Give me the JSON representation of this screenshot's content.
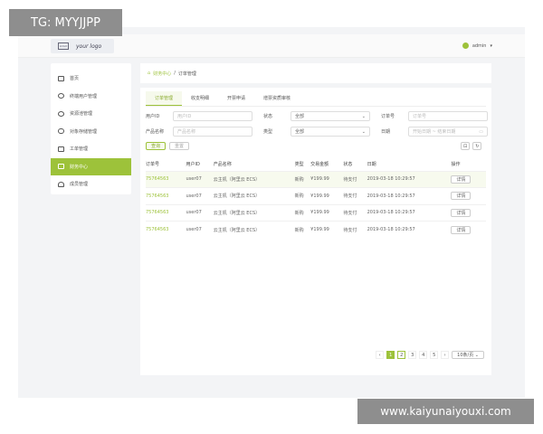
{
  "header": {
    "logo_text": "your logo",
    "logo_box": "LOGO",
    "user": "admin",
    "caret": "▾"
  },
  "sidebar": {
    "items": [
      {
        "label": "首页"
      },
      {
        "label": "终端用户管理"
      },
      {
        "label": "资源池管理"
      },
      {
        "label": "对象存储管理"
      },
      {
        "label": "工单管理"
      },
      {
        "label": "财务中心"
      },
      {
        "label": "成员管理"
      }
    ]
  },
  "breadcrumb": {
    "parent": "财务中心",
    "sep": "/",
    "current": "订单管理"
  },
  "tabs": [
    "订单管理",
    "收支明细",
    "开票申请",
    "增票资质审核"
  ],
  "filters": {
    "user_id_label": "用户ID",
    "user_id_ph": "用户ID",
    "status_label": "状态",
    "status_value": "全部",
    "order_label": "订单号",
    "order_ph": "订单号",
    "product_label": "产品名称",
    "product_ph": "产品名称",
    "type_label": "类型",
    "type_value": "全部",
    "date_label": "日期",
    "date_ph": "开始日期 ~ 结束日期",
    "search": "查询",
    "reset": "重置"
  },
  "table": {
    "headers": [
      "订单号",
      "用户ID",
      "产品名称",
      "类型",
      "交易金额",
      "状态",
      "日期",
      "操作"
    ],
    "rows": [
      [
        "75764563",
        "user07",
        "云主机（阿里云 ECS）",
        "新购",
        "¥199.99",
        "待支付",
        "2019-03-18 10:29:57",
        "详情"
      ],
      [
        "75764563",
        "user07",
        "云主机（阿里云 ECS）",
        "新购",
        "¥199.99",
        "待支付",
        "2019-03-18 10:29:57",
        "详情"
      ],
      [
        "75764563",
        "user07",
        "云主机（阿里云 ECS）",
        "新购",
        "¥199.99",
        "待支付",
        "2019-03-18 10:29:57",
        "详情"
      ],
      [
        "75764563",
        "user07",
        "云主机（阿里云 ECS）",
        "新购",
        "¥199.99",
        "待支付",
        "2019-03-18 10:29:57",
        "详情"
      ]
    ]
  },
  "pagination": {
    "prev": "‹",
    "pages": [
      "1",
      "2",
      "3",
      "4",
      "5"
    ],
    "next": "›",
    "size": "10条/页 ⌄",
    "current": 1
  },
  "watermarks": {
    "top": "TG: MYYJJPP",
    "bottom": "www.kaiyunaiyouxi.com"
  },
  "colors": {
    "accent": "#9dc23a"
  }
}
